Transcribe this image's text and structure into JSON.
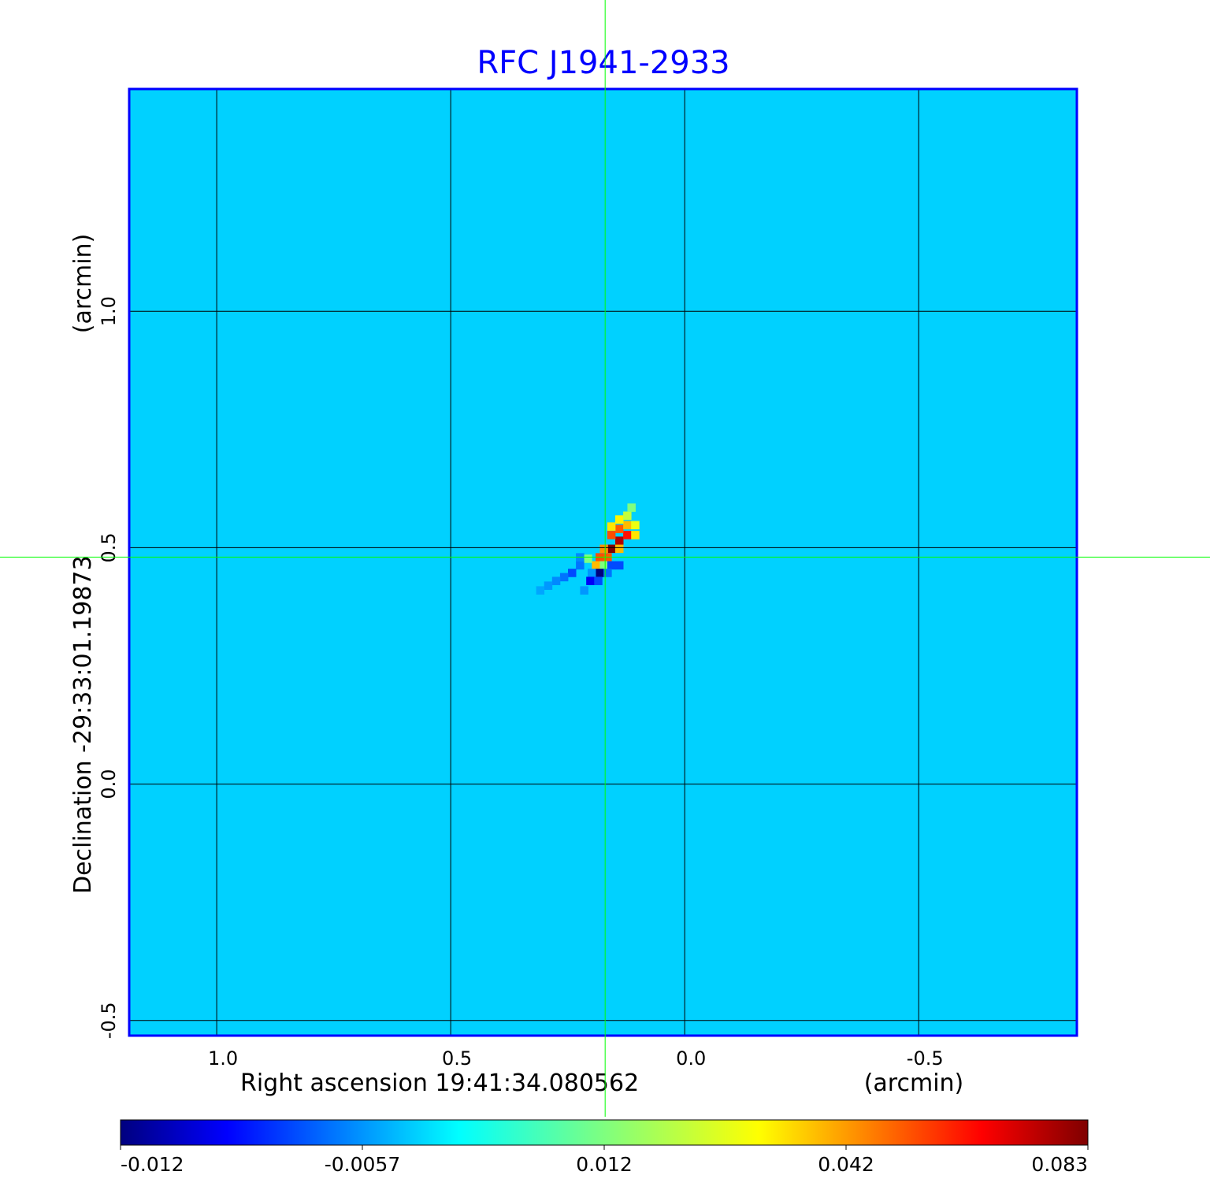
{
  "chart_data": {
    "type": "heatmap",
    "title": "RFC J1941-2933",
    "xlabel": "Right ascension  19:41:34.080562",
    "xunit": "(arcmin)",
    "ylabel": "Declination  -29:33:01.19873",
    "yunit": "(arcmin)",
    "xlim": [
      1.187,
      -0.838
    ],
    "ylim": [
      -0.532,
      1.47
    ],
    "xticks": [
      1.0,
      0.5,
      0.0,
      -0.5
    ],
    "xtick_labels": [
      "1.0",
      "0.5",
      "0.0",
      "-0.5"
    ],
    "yticks": [
      1.0,
      0.5,
      0.0,
      -0.5
    ],
    "ytick_labels": [
      "1.0",
      "0.5",
      "0.0",
      "-0.5"
    ],
    "grid": true,
    "crosshair": {
      "ra_arcmin": 0.17,
      "dec_arcmin": 0.48
    },
    "background_value": 0.0,
    "pixel_size_arcmin": 0.0168,
    "source_pixels": [
      {
        "ra": 0.157,
        "dec": 0.498,
        "v": 0.083
      },
      {
        "ra": 0.14,
        "dec": 0.515,
        "v": 0.075
      },
      {
        "ra": 0.123,
        "dec": 0.527,
        "v": 0.06
      },
      {
        "ra": 0.157,
        "dec": 0.527,
        "v": 0.05
      },
      {
        "ra": 0.14,
        "dec": 0.54,
        "v": 0.048
      },
      {
        "ra": 0.123,
        "dec": 0.548,
        "v": 0.035
      },
      {
        "ra": 0.157,
        "dec": 0.545,
        "v": 0.03
      },
      {
        "ra": 0.14,
        "dec": 0.56,
        "v": 0.028
      },
      {
        "ra": 0.123,
        "dec": 0.568,
        "v": 0.02
      },
      {
        "ra": 0.106,
        "dec": 0.548,
        "v": 0.025
      },
      {
        "ra": 0.106,
        "dec": 0.527,
        "v": 0.03
      },
      {
        "ra": 0.114,
        "dec": 0.585,
        "v": 0.012
      },
      {
        "ra": 0.173,
        "dec": 0.498,
        "v": 0.04
      },
      {
        "ra": 0.14,
        "dec": 0.498,
        "v": 0.035
      },
      {
        "ra": 0.182,
        "dec": 0.48,
        "v": 0.05
      },
      {
        "ra": 0.165,
        "dec": 0.48,
        "v": 0.048
      },
      {
        "ra": 0.19,
        "dec": 0.463,
        "v": 0.035
      },
      {
        "ra": 0.173,
        "dec": 0.463,
        "v": 0.012
      },
      {
        "ra": 0.157,
        "dec": 0.463,
        "v": -0.007
      },
      {
        "ra": 0.14,
        "dec": 0.463,
        "v": -0.007
      },
      {
        "ra": 0.182,
        "dec": 0.447,
        "v": -0.012
      },
      {
        "ra": 0.165,
        "dec": 0.447,
        "v": -0.006
      },
      {
        "ra": 0.199,
        "dec": 0.447,
        "v": -0.004
      },
      {
        "ra": 0.202,
        "dec": 0.43,
        "v": -0.009
      },
      {
        "ra": 0.185,
        "dec": 0.43,
        "v": -0.007
      },
      {
        "ra": 0.207,
        "dec": 0.477,
        "v": 0.012
      },
      {
        "ra": 0.224,
        "dec": 0.463,
        "v": -0.006
      },
      {
        "ra": 0.224,
        "dec": 0.48,
        "v": -0.005
      },
      {
        "ra": 0.241,
        "dec": 0.447,
        "v": -0.007
      },
      {
        "ra": 0.258,
        "dec": 0.438,
        "v": -0.006
      },
      {
        "ra": 0.275,
        "dec": 0.43,
        "v": -0.005
      },
      {
        "ra": 0.292,
        "dec": 0.42,
        "v": -0.004
      },
      {
        "ra": 0.309,
        "dec": 0.41,
        "v": -0.003
      },
      {
        "ra": 0.215,
        "dec": 0.41,
        "v": -0.004
      }
    ],
    "colorbar": {
      "ticks": [
        -0.012,
        -0.0057,
        0.012,
        0.042,
        0.083
      ],
      "tick_labels": [
        "-0.012",
        "-0.0057",
        "0.012",
        "0.042",
        "0.083"
      ],
      "colormap": "jet"
    },
    "colors": {
      "title": "#0000ff",
      "frame": "#0000ff",
      "crosshair": "#00ff00",
      "grid": "#000000"
    }
  }
}
